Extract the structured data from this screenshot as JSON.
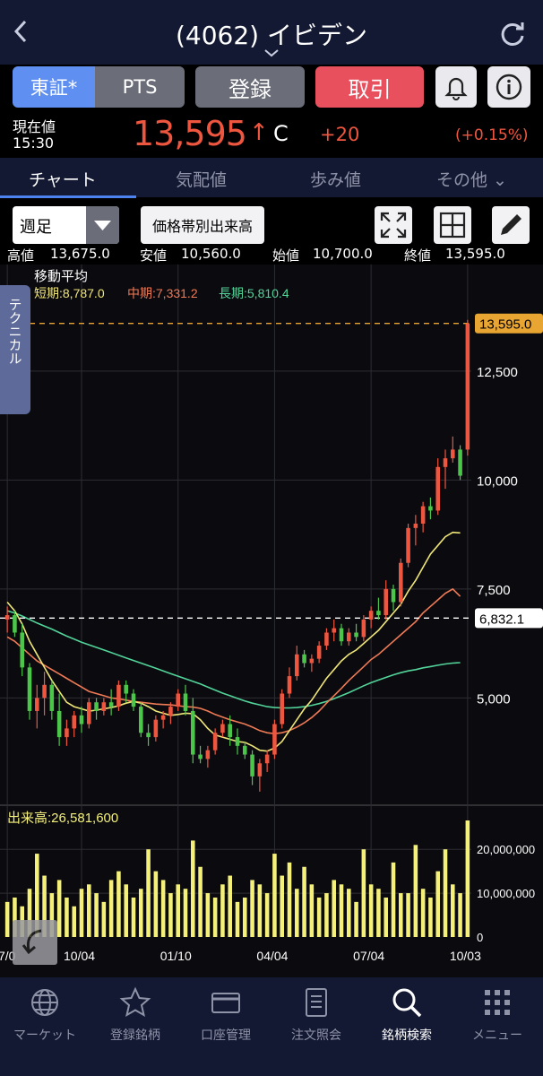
{
  "header": {
    "title": "(4062) イビデン",
    "back_icon": "chevron-left-icon",
    "refresh_icon": "refresh-icon"
  },
  "market_buttons": {
    "tse": "東証*",
    "pts": "PTS"
  },
  "actions": {
    "register": "登録",
    "trade": "取引",
    "bell_icon": "bell-icon",
    "info_icon": "info-icon"
  },
  "quote": {
    "current_label": "現在値",
    "time": "15:30",
    "price": "13,595",
    "arrow": "↑",
    "flag": "C",
    "change": "+20",
    "change_pct": "(+0.15%)"
  },
  "tabs": [
    "チャート",
    "気配値",
    "歩み値",
    "その他 ⌄"
  ],
  "controls": {
    "period": "週足",
    "volume_profile": "価格帯別出来高",
    "expand_icon": "expand-icon",
    "grid_icon": "grid-icon",
    "pencil_icon": "pencil-icon"
  },
  "ohlc": {
    "high_label": "高値",
    "high": "13,675.0",
    "low_label": "安値",
    "low": "10,560.0",
    "open_label": "始値",
    "open": "10,700.0",
    "close_label": "終値",
    "close": "13,595.0"
  },
  "technical_tab": "テクニカル",
  "colors": {
    "bg": "#000000",
    "header": "#141933",
    "up": "#ee5640",
    "down": "#4cc64a",
    "ma_short": "#f0e678",
    "ma_mid": "#ef7a56",
    "ma_long": "#52d49a",
    "volume": "#f4f07a",
    "accent": "#5f8ff0"
  },
  "chart_data": {
    "type": "candlestick",
    "ma_title": "移動平均",
    "ma_short_label": "短期:8,787.0",
    "ma_mid_label": "中期:7,331.2",
    "ma_long_label": "長期:5,810.4",
    "current_price_label": "13,595.0",
    "line_price_label": "6,832.1",
    "current_price": 13595,
    "line_price": 6832.1,
    "y_ticks": [
      {
        "value": 12500,
        "label": "12,500"
      },
      {
        "value": 10000,
        "label": "10,000"
      },
      {
        "value": 7500,
        "label": "7,500"
      },
      {
        "value": 5000,
        "label": "5,000"
      }
    ],
    "ylim": [
      2600,
      14700
    ],
    "x_ticks": [
      {
        "index": 0,
        "label": "7/0"
      },
      {
        "index": 10,
        "label": "10/04"
      },
      {
        "index": 23,
        "label": "01/10"
      },
      {
        "index": 36,
        "label": "04/04"
      },
      {
        "index": 49,
        "label": "07/04"
      },
      {
        "index": 62,
        "label": "10/03"
      }
    ],
    "volume_label": "出来高:26,581,600",
    "volume_ticks": [
      {
        "value": 20000000,
        "label": "20,000,000"
      },
      {
        "value": 10000000,
        "label": "10,000,000"
      },
      {
        "value": 0,
        "label": "0"
      }
    ],
    "volume_ylim": [
      0,
      26581600
    ],
    "candles": [
      {
        "o": 6800,
        "h": 7100,
        "l": 6500,
        "c": 6900
      },
      {
        "o": 6900,
        "h": 7000,
        "l": 6400,
        "c": 6500
      },
      {
        "o": 6500,
        "h": 6700,
        "l": 5500,
        "c": 5700
      },
      {
        "o": 5700,
        "h": 5800,
        "l": 4500,
        "c": 4700
      },
      {
        "o": 4700,
        "h": 5300,
        "l": 4300,
        "c": 5000
      },
      {
        "o": 5000,
        "h": 5600,
        "l": 4600,
        "c": 5300
      },
      {
        "o": 5300,
        "h": 5400,
        "l": 4500,
        "c": 4700
      },
      {
        "o": 4700,
        "h": 5100,
        "l": 3900,
        "c": 4100
      },
      {
        "o": 4100,
        "h": 4500,
        "l": 3900,
        "c": 4300
      },
      {
        "o": 4300,
        "h": 4700,
        "l": 4100,
        "c": 4600
      },
      {
        "o": 4600,
        "h": 4800,
        "l": 4200,
        "c": 4400
      },
      {
        "o": 4400,
        "h": 5000,
        "l": 4300,
        "c": 4900
      },
      {
        "o": 4900,
        "h": 5000,
        "l": 4500,
        "c": 4700
      },
      {
        "o": 4700,
        "h": 5000,
        "l": 4600,
        "c": 4900
      },
      {
        "o": 4900,
        "h": 5200,
        "l": 4600,
        "c": 4800
      },
      {
        "o": 4800,
        "h": 5400,
        "l": 4700,
        "c": 5300
      },
      {
        "o": 5300,
        "h": 5400,
        "l": 4900,
        "c": 5100
      },
      {
        "o": 5100,
        "h": 5200,
        "l": 4700,
        "c": 4800
      },
      {
        "o": 4800,
        "h": 4900,
        "l": 4100,
        "c": 4200
      },
      {
        "o": 4200,
        "h": 4400,
        "l": 3900,
        "c": 4100
      },
      {
        "o": 4100,
        "h": 4600,
        "l": 4000,
        "c": 4500
      },
      {
        "o": 4500,
        "h": 4700,
        "l": 4300,
        "c": 4600
      },
      {
        "o": 4600,
        "h": 4900,
        "l": 4400,
        "c": 4800
      },
      {
        "o": 4800,
        "h": 5200,
        "l": 4700,
        "c": 5100
      },
      {
        "o": 5100,
        "h": 5300,
        "l": 4600,
        "c": 4700
      },
      {
        "o": 4700,
        "h": 5000,
        "l": 3500,
        "c": 3700
      },
      {
        "o": 3700,
        "h": 3900,
        "l": 3500,
        "c": 3600
      },
      {
        "o": 3600,
        "h": 3900,
        "l": 3400,
        "c": 3800
      },
      {
        "o": 3800,
        "h": 4300,
        "l": 3700,
        "c": 4200
      },
      {
        "o": 4200,
        "h": 4500,
        "l": 4100,
        "c": 4400
      },
      {
        "o": 4400,
        "h": 4600,
        "l": 3900,
        "c": 4100
      },
      {
        "o": 4100,
        "h": 4300,
        "l": 3700,
        "c": 3900
      },
      {
        "o": 3900,
        "h": 4000,
        "l": 3600,
        "c": 3700
      },
      {
        "o": 3700,
        "h": 3800,
        "l": 3000,
        "c": 3200
      },
      {
        "o": 3200,
        "h": 3600,
        "l": 2850,
        "c": 3500
      },
      {
        "o": 3500,
        "h": 3800,
        "l": 3300,
        "c": 3700
      },
      {
        "o": 3700,
        "h": 4500,
        "l": 3600,
        "c": 4400
      },
      {
        "o": 4400,
        "h": 5200,
        "l": 4300,
        "c": 5100
      },
      {
        "o": 5100,
        "h": 5700,
        "l": 5000,
        "c": 5500
      },
      {
        "o": 5500,
        "h": 6200,
        "l": 5400,
        "c": 6000
      },
      {
        "o": 6000,
        "h": 6100,
        "l": 5700,
        "c": 5800
      },
      {
        "o": 5800,
        "h": 6000,
        "l": 5600,
        "c": 5900
      },
      {
        "o": 5900,
        "h": 6300,
        "l": 5800,
        "c": 6200
      },
      {
        "o": 6200,
        "h": 6600,
        "l": 6100,
        "c": 6500
      },
      {
        "o": 6500,
        "h": 6800,
        "l": 6300,
        "c": 6600
      },
      {
        "o": 6600,
        "h": 6700,
        "l": 6200,
        "c": 6300
      },
      {
        "o": 6300,
        "h": 6600,
        "l": 6200,
        "c": 6500
      },
      {
        "o": 6500,
        "h": 6700,
        "l": 6300,
        "c": 6400
      },
      {
        "o": 6400,
        "h": 6900,
        "l": 6300,
        "c": 6800
      },
      {
        "o": 6800,
        "h": 7100,
        "l": 6600,
        "c": 7000
      },
      {
        "o": 7000,
        "h": 7300,
        "l": 6800,
        "c": 6900
      },
      {
        "o": 6900,
        "h": 7700,
        "l": 6800,
        "c": 7500
      },
      {
        "o": 7500,
        "h": 7600,
        "l": 7000,
        "c": 7200
      },
      {
        "o": 7200,
        "h": 8200,
        "l": 7100,
        "c": 8100
      },
      {
        "o": 8100,
        "h": 9000,
        "l": 8000,
        "c": 8900
      },
      {
        "o": 8900,
        "h": 9200,
        "l": 8500,
        "c": 9000
      },
      {
        "o": 9000,
        "h": 9500,
        "l": 8800,
        "c": 9400
      },
      {
        "o": 9400,
        "h": 9600,
        "l": 9100,
        "c": 9300
      },
      {
        "o": 9300,
        "h": 10500,
        "l": 9200,
        "c": 10300
      },
      {
        "o": 10300,
        "h": 10700,
        "l": 9800,
        "c": 10500
      },
      {
        "o": 10500,
        "h": 11000,
        "l": 10400,
        "c": 10700
      },
      {
        "o": 10700,
        "h": 10800,
        "l": 10000,
        "c": 10100
      },
      {
        "o": 10700,
        "h": 13675,
        "l": 10560,
        "c": 13595
      }
    ],
    "ma_short": [
      7200,
      7000,
      6700,
      6300,
      6000,
      5700,
      5400,
      5150,
      4900,
      4800,
      4750,
      4700,
      4720,
      4750,
      4780,
      4820,
      4880,
      4920,
      4880,
      4800,
      4700,
      4650,
      4600,
      4620,
      4650,
      4640,
      4500,
      4300,
      4150,
      4100,
      4050,
      4000,
      3980,
      3900,
      3800,
      3780,
      3850,
      4000,
      4250,
      4500,
      4750,
      4950,
      5200,
      5450,
      5650,
      5850,
      6000,
      6100,
      6250,
      6400,
      6550,
      6750,
      6950,
      7150,
      7450,
      7700,
      8000,
      8300,
      8500,
      8700,
      8800,
      8787
    ],
    "ma_mid": [
      6400,
      6300,
      6150,
      6000,
      5850,
      5750,
      5650,
      5550,
      5450,
      5350,
      5250,
      5150,
      5100,
      5050,
      5000,
      4980,
      4950,
      4920,
      4900,
      4880,
      4860,
      4850,
      4840,
      4820,
      4800,
      4790,
      4760,
      4700,
      4620,
      4560,
      4500,
      4450,
      4400,
      4330,
      4250,
      4200,
      4180,
      4200,
      4250,
      4330,
      4430,
      4550,
      4700,
      4880,
      5050,
      5220,
      5400,
      5560,
      5720,
      5880,
      6000,
      6150,
      6300,
      6450,
      6600,
      6750,
      6950,
      7100,
      7250,
      7400,
      7500,
      7331
    ],
    "ma_long": [
      7000,
      6950,
      6880,
      6800,
      6720,
      6650,
      6580,
      6500,
      6420,
      6350,
      6280,
      6220,
      6160,
      6100,
      6040,
      5980,
      5920,
      5860,
      5800,
      5740,
      5680,
      5620,
      5560,
      5500,
      5440,
      5380,
      5320,
      5250,
      5180,
      5110,
      5050,
      4990,
      4930,
      4880,
      4840,
      4800,
      4780,
      4770,
      4770,
      4780,
      4800,
      4830,
      4870,
      4920,
      4980,
      5050,
      5120,
      5200,
      5280,
      5350,
      5410,
      5470,
      5530,
      5580,
      5620,
      5650,
      5690,
      5720,
      5750,
      5780,
      5800,
      5810
    ],
    "volume": [
      8,
      9,
      7,
      11,
      19,
      14,
      10,
      13,
      9,
      7,
      11,
      12,
      10,
      8,
      13,
      15,
      12,
      9,
      11,
      20,
      15,
      13,
      10,
      12,
      11,
      22,
      16,
      10,
      9,
      12,
      14,
      8,
      9,
      13,
      12,
      10,
      19,
      14,
      17,
      11,
      16,
      12,
      9,
      10,
      13,
      12,
      11,
      8,
      20,
      12,
      11,
      9,
      17,
      10,
      10,
      21,
      11,
      9,
      15,
      20,
      12,
      10,
      26.58
    ]
  },
  "nav": [
    "マーケット",
    "登録銘柄",
    "口座管理",
    "注文照会",
    "銘柄検索",
    "メニュー"
  ]
}
